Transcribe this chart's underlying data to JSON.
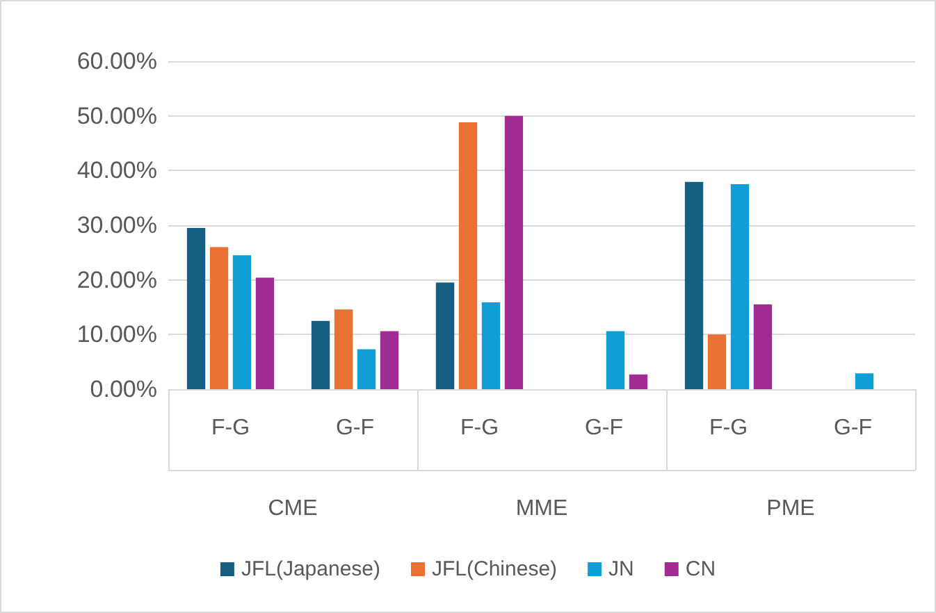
{
  "chart_data": {
    "type": "bar",
    "categories": [
      "F-G",
      "G-F",
      "F-G",
      "G-F",
      "F-G",
      "G-F"
    ],
    "annotations": [
      "CME",
      "MME",
      "PME"
    ],
    "series": [
      {
        "name": "JFL(Japanese)",
        "color": "#156082",
        "values": [
          29.5,
          12.5,
          19.5,
          null,
          37.9,
          null
        ]
      },
      {
        "name": "JFL(Chinese)",
        "color": "#e97132",
        "values": [
          26.0,
          14.6,
          48.8,
          null,
          10.0,
          null
        ]
      },
      {
        "name": "JN",
        "color": "#0f9ed5",
        "values": [
          24.5,
          7.3,
          15.9,
          10.6,
          37.5,
          2.9
        ]
      },
      {
        "name": "CN",
        "color": "#a02b93",
        "values": [
          20.4,
          10.6,
          50.0,
          2.7,
          15.5,
          null
        ]
      }
    ],
    "ylim": [
      0,
      60
    ],
    "yticks": [
      {
        "value": 0,
        "label": "0.00%"
      },
      {
        "value": 10,
        "label": "10.00%"
      },
      {
        "value": 20,
        "label": "20.00%"
      },
      {
        "value": 30,
        "label": "30.00%"
      },
      {
        "value": 40,
        "label": "40.00%"
      },
      {
        "value": 50,
        "label": "50.00%"
      },
      {
        "value": 60,
        "label": "60.00%"
      }
    ],
    "grid": "y",
    "legend": "bottom"
  }
}
